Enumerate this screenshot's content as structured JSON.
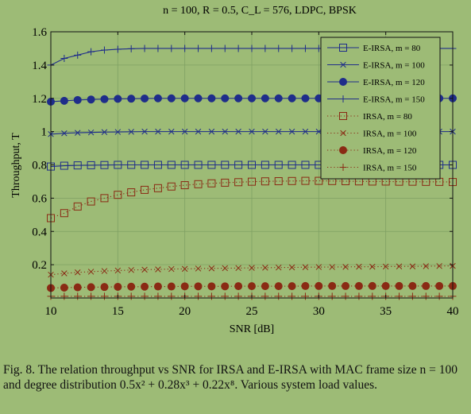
{
  "chart_data": {
    "type": "line",
    "title": "n = 100, R = 0.5, C_L = 576, LDPC, BPSK",
    "xlabel": "SNR [dB]",
    "ylabel": "Throughput, T",
    "xlim": [
      10,
      40
    ],
    "ylim": [
      0,
      1.6
    ],
    "xticks": [
      10,
      15,
      20,
      25,
      30,
      35,
      40
    ],
    "yticks": [
      0.2,
      0.4,
      0.6,
      0.8,
      1,
      1.2,
      1.4,
      1.6
    ],
    "grid": true,
    "legend_position": "top-right",
    "x": [
      10,
      11,
      12,
      13,
      14,
      15,
      16,
      17,
      18,
      19,
      20,
      21,
      22,
      23,
      24,
      25,
      26,
      27,
      28,
      29,
      30,
      31,
      32,
      33,
      34,
      35,
      36,
      37,
      38,
      39,
      40
    ],
    "series": [
      {
        "name": "E-IRSA, m = 80",
        "color": "#1f2d8a",
        "marker": "square-open",
        "line": "solid",
        "values": [
          0.79,
          0.795,
          0.797,
          0.798,
          0.799,
          0.8,
          0.8,
          0.8,
          0.8,
          0.8,
          0.8,
          0.8,
          0.8,
          0.8,
          0.8,
          0.8,
          0.8,
          0.8,
          0.8,
          0.8,
          0.8,
          0.8,
          0.8,
          0.8,
          0.8,
          0.8,
          0.8,
          0.8,
          0.8,
          0.8,
          0.8
        ]
      },
      {
        "name": "E-IRSA, m = 100",
        "color": "#1f2d8a",
        "marker": "x",
        "line": "solid",
        "values": [
          0.985,
          0.99,
          0.993,
          0.995,
          0.997,
          0.998,
          0.999,
          1,
          1,
          1,
          1,
          1,
          1,
          1,
          1,
          1,
          1,
          1,
          1,
          1,
          1,
          1,
          1,
          1,
          1,
          1,
          1,
          1,
          1,
          1,
          1
        ]
      },
      {
        "name": "E-IRSA, m = 120",
        "color": "#1f2d8a",
        "marker": "circle-filled",
        "line": "solid",
        "values": [
          1.18,
          1.185,
          1.19,
          1.193,
          1.195,
          1.197,
          1.198,
          1.199,
          1.2,
          1.2,
          1.2,
          1.2,
          1.2,
          1.2,
          1.2,
          1.2,
          1.2,
          1.2,
          1.2,
          1.2,
          1.2,
          1.2,
          1.2,
          1.2,
          1.2,
          1.2,
          1.2,
          1.2,
          1.2,
          1.2,
          1.2
        ]
      },
      {
        "name": "E-IRSA, m = 150",
        "color": "#1f2d8a",
        "marker": "plus",
        "line": "solid",
        "values": [
          1.4,
          1.44,
          1.46,
          1.48,
          1.49,
          1.495,
          1.498,
          1.5,
          1.5,
          1.5,
          1.5,
          1.5,
          1.5,
          1.5,
          1.5,
          1.5,
          1.5,
          1.5,
          1.5,
          1.5,
          1.5,
          1.5,
          1.5,
          1.5,
          1.5,
          1.5,
          1.5,
          1.5,
          1.5,
          1.5,
          1.5
        ]
      },
      {
        "name": "IRSA, m = 80",
        "color": "#8a2a14",
        "marker": "square-open",
        "line": "dotted",
        "values": [
          0.48,
          0.51,
          0.55,
          0.58,
          0.6,
          0.62,
          0.635,
          0.65,
          0.66,
          0.67,
          0.678,
          0.684,
          0.689,
          0.693,
          0.696,
          0.699,
          0.701,
          0.702,
          0.703,
          0.704,
          0.704,
          0.703,
          0.702,
          0.701,
          0.7,
          0.7,
          0.699,
          0.699,
          0.698,
          0.698,
          0.697
        ]
      },
      {
        "name": "IRSA, m = 100",
        "color": "#8a2a14",
        "marker": "x",
        "line": "dotted",
        "values": [
          0.14,
          0.148,
          0.154,
          0.158,
          0.162,
          0.165,
          0.168,
          0.17,
          0.172,
          0.174,
          0.175,
          0.177,
          0.178,
          0.179,
          0.18,
          0.181,
          0.182,
          0.183,
          0.184,
          0.185,
          0.186,
          0.186,
          0.187,
          0.188,
          0.188,
          0.189,
          0.19,
          0.19,
          0.191,
          0.192,
          0.193
        ]
      },
      {
        "name": "IRSA, m = 120",
        "color": "#8a2a14",
        "marker": "circle-filled",
        "line": "dotted",
        "values": [
          0.06,
          0.062,
          0.064,
          0.065,
          0.066,
          0.067,
          0.068,
          0.068,
          0.069,
          0.069,
          0.07,
          0.07,
          0.07,
          0.07,
          0.071,
          0.071,
          0.071,
          0.071,
          0.071,
          0.072,
          0.072,
          0.072,
          0.072,
          0.072,
          0.072,
          0.072,
          0.072,
          0.072,
          0.072,
          0.072,
          0.072
        ]
      },
      {
        "name": "IRSA, m = 150",
        "color": "#8a2a14",
        "marker": "plus",
        "line": "dotted",
        "values": [
          0.01,
          0.01,
          0.01,
          0.01,
          0.01,
          0.01,
          0.01,
          0.01,
          0.01,
          0.01,
          0.01,
          0.01,
          0.01,
          0.01,
          0.01,
          0.01,
          0.01,
          0.01,
          0.01,
          0.01,
          0.01,
          0.01,
          0.01,
          0.01,
          0.01,
          0.01,
          0.01,
          0.01,
          0.01,
          0.01,
          0.01
        ]
      }
    ]
  },
  "caption": {
    "label": "Fig. 8.",
    "text": "The relation throughput vs SNR for IRSA and E-IRSA with MAC frame size n = 100 and degree distribution 0.5x² + 0.28x³ + 0.22x⁸. Various system load values."
  }
}
